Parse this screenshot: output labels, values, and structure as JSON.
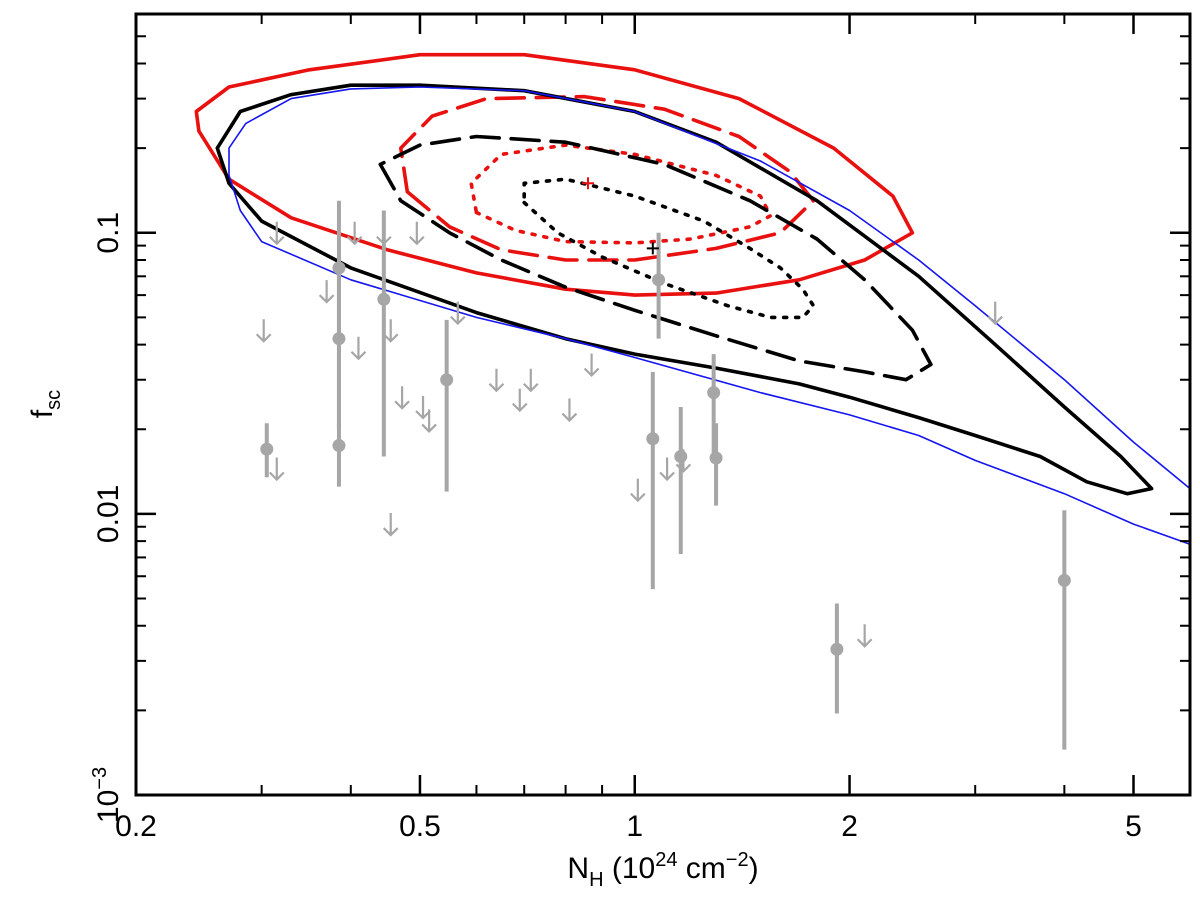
{
  "chart_data": {
    "type": "scatter",
    "title": "",
    "xscale": "log",
    "yscale": "log",
    "xlim": [
      0.2,
      6.0
    ],
    "ylim": [
      0.001,
      0.6
    ],
    "xlabel": {
      "base": "N",
      "sub": "H",
      "pre": " (10",
      "sup": "24",
      "post": " cm",
      "sup2": "−2",
      "end": ")"
    },
    "ylabel": {
      "base": "f",
      "sub": "sc"
    },
    "x_ticks_labeled": [
      {
        "value": 0.2,
        "label": "0.2"
      },
      {
        "value": 0.5,
        "label": "0.5"
      },
      {
        "value": 1,
        "label": "1"
      },
      {
        "value": 2,
        "label": "2"
      },
      {
        "value": 5,
        "label": "5"
      }
    ],
    "x_ticks_minor": [
      0.3,
      0.4,
      0.6,
      0.7,
      0.8,
      0.9,
      3,
      4,
      6
    ],
    "y_ticks_labeled": [
      {
        "value": 0.1,
        "label": "0.1"
      },
      {
        "value": 0.01,
        "label": "0.01"
      },
      {
        "value": 0.001,
        "label": "10",
        "sup": "−3"
      }
    ],
    "y_ticks_minor": [
      0.002,
      0.003,
      0.004,
      0.005,
      0.006,
      0.007,
      0.008,
      0.009,
      0.02,
      0.03,
      0.04,
      0.05,
      0.06,
      0.07,
      0.08,
      0.09,
      0.2,
      0.3,
      0.4,
      0.5
    ],
    "series": [
      {
        "name": "detections",
        "color": "#a6a6a6",
        "points": [
          {
            "x": 0.305,
            "y": 0.017,
            "ylo": 0.0135,
            "yhi": 0.021
          },
          {
            "x": 0.385,
            "y": 0.075,
            "ylo": 0.04,
            "yhi": 0.13
          },
          {
            "x": 0.385,
            "y": 0.042,
            "ylo": 0.02,
            "yhi": 0.075
          },
          {
            "x": 0.385,
            "y": 0.0175,
            "ylo": 0.0125,
            "yhi": 0.04
          },
          {
            "x": 0.445,
            "y": 0.058,
            "ylo": 0.016,
            "yhi": 0.12
          },
          {
            "x": 0.545,
            "y": 0.03,
            "ylo": 0.012,
            "yhi": 0.049
          },
          {
            "x": 1.08,
            "y": 0.068,
            "ylo": 0.042,
            "yhi": 0.1
          },
          {
            "x": 1.06,
            "y": 0.0185,
            "ylo": 0.0054,
            "yhi": 0.032
          },
          {
            "x": 1.16,
            "y": 0.016,
            "ylo": 0.0072,
            "yhi": 0.024
          },
          {
            "x": 1.29,
            "y": 0.027,
            "ylo": 0.0165,
            "yhi": 0.037
          },
          {
            "x": 1.3,
            "y": 0.0158,
            "ylo": 0.0107,
            "yhi": 0.021
          },
          {
            "x": 1.92,
            "y": 0.0033,
            "ylo": 0.00195,
            "yhi": 0.0048
          },
          {
            "x": 4.0,
            "y": 0.0058,
            "ylo": 0.00145,
            "yhi": 0.0103
          }
        ]
      },
      {
        "name": "upper limits",
        "color": "#a6a6a6",
        "points": [
          {
            "x": 0.315,
            "y": 0.1
          },
          {
            "x": 0.302,
            "y": 0.045
          },
          {
            "x": 0.315,
            "y": 0.0145
          },
          {
            "x": 0.37,
            "y": 0.062
          },
          {
            "x": 0.405,
            "y": 0.1
          },
          {
            "x": 0.41,
            "y": 0.039
          },
          {
            "x": 0.445,
            "y": 0.1
          },
          {
            "x": 0.455,
            "y": 0.045
          },
          {
            "x": 0.455,
            "y": 0.0092
          },
          {
            "x": 0.495,
            "y": 0.1
          },
          {
            "x": 0.472,
            "y": 0.026
          },
          {
            "x": 0.505,
            "y": 0.024
          },
          {
            "x": 0.515,
            "y": 0.0215
          },
          {
            "x": 0.565,
            "y": 0.052
          },
          {
            "x": 0.64,
            "y": 0.03
          },
          {
            "x": 0.69,
            "y": 0.0255
          },
          {
            "x": 0.715,
            "y": 0.03
          },
          {
            "x": 0.81,
            "y": 0.0235
          },
          {
            "x": 0.87,
            "y": 0.034
          },
          {
            "x": 1.01,
            "y": 0.0122
          },
          {
            "x": 1.11,
            "y": 0.0145
          },
          {
            "x": 1.17,
            "y": 0.0155
          },
          {
            "x": 2.1,
            "y": 0.0037
          },
          {
            "x": 3.2,
            "y": 0.052
          }
        ]
      },
      {
        "name": "red contour 1σ (dotted)",
        "color": "#e8110f",
        "dash": "dotted",
        "points": [
          {
            "x": 0.6,
            "y": 0.118
          },
          {
            "x": 0.68,
            "y": 0.102
          },
          {
            "x": 0.8,
            "y": 0.093
          },
          {
            "x": 1.0,
            "y": 0.092
          },
          {
            "x": 1.2,
            "y": 0.095
          },
          {
            "x": 1.45,
            "y": 0.105
          },
          {
            "x": 1.55,
            "y": 0.115
          },
          {
            "x": 1.5,
            "y": 0.135
          },
          {
            "x": 1.3,
            "y": 0.16
          },
          {
            "x": 1.0,
            "y": 0.19
          },
          {
            "x": 0.8,
            "y": 0.205
          },
          {
            "x": 0.65,
            "y": 0.19
          },
          {
            "x": 0.59,
            "y": 0.15
          },
          {
            "x": 0.6,
            "y": 0.118
          }
        ]
      },
      {
        "name": "red contour 2σ (dashed)",
        "color": "#e8110f",
        "dash": "dashed",
        "points": [
          {
            "x": 0.48,
            "y": 0.14
          },
          {
            "x": 0.55,
            "y": 0.105
          },
          {
            "x": 0.65,
            "y": 0.087
          },
          {
            "x": 0.8,
            "y": 0.08
          },
          {
            "x": 1.0,
            "y": 0.08
          },
          {
            "x": 1.3,
            "y": 0.088
          },
          {
            "x": 1.6,
            "y": 0.1
          },
          {
            "x": 1.78,
            "y": 0.13
          },
          {
            "x": 1.65,
            "y": 0.165
          },
          {
            "x": 1.4,
            "y": 0.22
          },
          {
            "x": 1.1,
            "y": 0.275
          },
          {
            "x": 0.85,
            "y": 0.305
          },
          {
            "x": 0.62,
            "y": 0.3
          },
          {
            "x": 0.52,
            "y": 0.26
          },
          {
            "x": 0.47,
            "y": 0.2
          },
          {
            "x": 0.48,
            "y": 0.14
          }
        ]
      },
      {
        "name": "red contour 3σ (solid)",
        "color": "#e8110f",
        "dash": "solid",
        "points": [
          {
            "x": 0.245,
            "y": 0.23
          },
          {
            "x": 0.27,
            "y": 0.155
          },
          {
            "x": 0.33,
            "y": 0.113
          },
          {
            "x": 0.45,
            "y": 0.087
          },
          {
            "x": 0.6,
            "y": 0.072
          },
          {
            "x": 0.8,
            "y": 0.063
          },
          {
            "x": 1.0,
            "y": 0.06
          },
          {
            "x": 1.3,
            "y": 0.061
          },
          {
            "x": 1.7,
            "y": 0.068
          },
          {
            "x": 2.1,
            "y": 0.08
          },
          {
            "x": 2.45,
            "y": 0.1
          },
          {
            "x": 2.3,
            "y": 0.135
          },
          {
            "x": 1.9,
            "y": 0.2
          },
          {
            "x": 1.4,
            "y": 0.3
          },
          {
            "x": 1.0,
            "y": 0.38
          },
          {
            "x": 0.7,
            "y": 0.43
          },
          {
            "x": 0.5,
            "y": 0.43
          },
          {
            "x": 0.35,
            "y": 0.38
          },
          {
            "x": 0.27,
            "y": 0.33
          },
          {
            "x": 0.243,
            "y": 0.27
          },
          {
            "x": 0.245,
            "y": 0.23
          }
        ]
      },
      {
        "name": "black contour 1σ (dotted)",
        "color": "#000000",
        "dash": "dotted",
        "points": [
          {
            "x": 0.7,
            "y": 0.128
          },
          {
            "x": 0.78,
            "y": 0.1
          },
          {
            "x": 0.9,
            "y": 0.082
          },
          {
            "x": 1.1,
            "y": 0.066
          },
          {
            "x": 1.35,
            "y": 0.055
          },
          {
            "x": 1.55,
            "y": 0.05
          },
          {
            "x": 1.72,
            "y": 0.05
          },
          {
            "x": 1.78,
            "y": 0.055
          },
          {
            "x": 1.72,
            "y": 0.063
          },
          {
            "x": 1.6,
            "y": 0.075
          },
          {
            "x": 1.45,
            "y": 0.088
          },
          {
            "x": 1.25,
            "y": 0.11
          },
          {
            "x": 1.0,
            "y": 0.135
          },
          {
            "x": 0.8,
            "y": 0.155
          },
          {
            "x": 0.7,
            "y": 0.15
          },
          {
            "x": 0.7,
            "y": 0.128
          }
        ]
      },
      {
        "name": "black contour 2σ (dashed)",
        "color": "#000000",
        "dash": "dashed",
        "points": [
          {
            "x": 0.44,
            "y": 0.175
          },
          {
            "x": 0.47,
            "y": 0.13
          },
          {
            "x": 0.55,
            "y": 0.1
          },
          {
            "x": 0.65,
            "y": 0.08
          },
          {
            "x": 0.8,
            "y": 0.064
          },
          {
            "x": 1.0,
            "y": 0.053
          },
          {
            "x": 1.3,
            "y": 0.043
          },
          {
            "x": 1.7,
            "y": 0.035
          },
          {
            "x": 2.1,
            "y": 0.032
          },
          {
            "x": 2.4,
            "y": 0.03
          },
          {
            "x": 2.6,
            "y": 0.034
          },
          {
            "x": 2.45,
            "y": 0.045
          },
          {
            "x": 2.1,
            "y": 0.068
          },
          {
            "x": 1.8,
            "y": 0.095
          },
          {
            "x": 1.45,
            "y": 0.13
          },
          {
            "x": 1.1,
            "y": 0.175
          },
          {
            "x": 0.8,
            "y": 0.21
          },
          {
            "x": 0.6,
            "y": 0.22
          },
          {
            "x": 0.5,
            "y": 0.205
          },
          {
            "x": 0.44,
            "y": 0.175
          }
        ]
      },
      {
        "name": "black contour 3σ (solid)",
        "color": "#000000",
        "dash": "solid",
        "points": [
          {
            "x": 0.26,
            "y": 0.2
          },
          {
            "x": 0.27,
            "y": 0.15
          },
          {
            "x": 0.3,
            "y": 0.11
          },
          {
            "x": 0.4,
            "y": 0.075
          },
          {
            "x": 0.6,
            "y": 0.052
          },
          {
            "x": 0.8,
            "y": 0.042
          },
          {
            "x": 1.0,
            "y": 0.037
          },
          {
            "x": 1.3,
            "y": 0.033
          },
          {
            "x": 1.7,
            "y": 0.029
          },
          {
            "x": 2.0,
            "y": 0.026
          },
          {
            "x": 2.5,
            "y": 0.022
          },
          {
            "x": 3.0,
            "y": 0.019
          },
          {
            "x": 3.7,
            "y": 0.016
          },
          {
            "x": 4.3,
            "y": 0.013
          },
          {
            "x": 4.9,
            "y": 0.0118
          },
          {
            "x": 5.3,
            "y": 0.0123
          },
          {
            "x": 4.8,
            "y": 0.016
          },
          {
            "x": 4.0,
            "y": 0.024
          },
          {
            "x": 3.2,
            "y": 0.04
          },
          {
            "x": 2.5,
            "y": 0.07
          },
          {
            "x": 1.8,
            "y": 0.13
          },
          {
            "x": 1.3,
            "y": 0.21
          },
          {
            "x": 1.0,
            "y": 0.27
          },
          {
            "x": 0.7,
            "y": 0.32
          },
          {
            "x": 0.5,
            "y": 0.335
          },
          {
            "x": 0.4,
            "y": 0.335
          },
          {
            "x": 0.33,
            "y": 0.31
          },
          {
            "x": 0.28,
            "y": 0.27
          },
          {
            "x": 0.26,
            "y": 0.2
          }
        ]
      },
      {
        "name": "blue limit curve",
        "color": "#1515ee",
        "dash": "solid",
        "points": [
          {
            "x": 6.0,
            "y": 0.0078
          },
          {
            "x": 5.0,
            "y": 0.0092
          },
          {
            "x": 4.0,
            "y": 0.0118
          },
          {
            "x": 3.0,
            "y": 0.0155
          },
          {
            "x": 2.5,
            "y": 0.019
          },
          {
            "x": 2.0,
            "y": 0.0225
          },
          {
            "x": 1.5,
            "y": 0.027
          },
          {
            "x": 1.0,
            "y": 0.036
          },
          {
            "x": 0.8,
            "y": 0.042
          },
          {
            "x": 0.6,
            "y": 0.05
          },
          {
            "x": 0.4,
            "y": 0.068
          },
          {
            "x": 0.3,
            "y": 0.093
          },
          {
            "x": 0.28,
            "y": 0.12
          },
          {
            "x": 0.27,
            "y": 0.16
          },
          {
            "x": 0.27,
            "y": 0.2
          },
          {
            "x": 0.285,
            "y": 0.245
          },
          {
            "x": 0.33,
            "y": 0.3
          },
          {
            "x": 0.4,
            "y": 0.325
          },
          {
            "x": 0.5,
            "y": 0.33
          },
          {
            "x": 0.7,
            "y": 0.32
          },
          {
            "x": 1.0,
            "y": 0.27
          },
          {
            "x": 1.5,
            "y": 0.18
          },
          {
            "x": 2.0,
            "y": 0.12
          },
          {
            "x": 2.5,
            "y": 0.08
          },
          {
            "x": 3.0,
            "y": 0.055
          },
          {
            "x": 4.0,
            "y": 0.03
          },
          {
            "x": 5.0,
            "y": 0.018
          },
          {
            "x": 6.0,
            "y": 0.0123
          }
        ]
      },
      {
        "name": "best fit",
        "points": [
          {
            "x": 0.86,
            "y": 0.15,
            "color": "#e8110f"
          },
          {
            "x": 1.06,
            "y": 0.088,
            "color": "#000000"
          }
        ]
      }
    ]
  }
}
